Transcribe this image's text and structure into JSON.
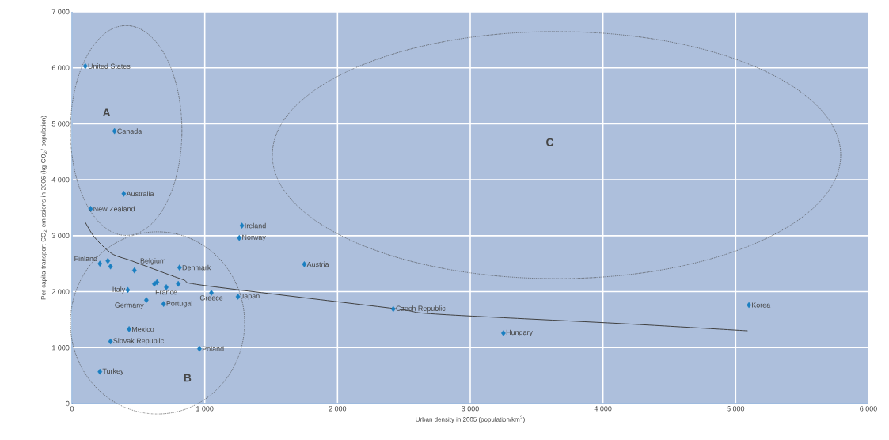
{
  "chart_data": {
    "type": "scatter",
    "xlabel": "Urban density in 2005 (population/km$^{2}$)",
    "ylabel": "Per capita transport CO$_{2}$ emissions in 2006 (kg CO$_{2}$/ population)",
    "xlim": [
      0,
      6000
    ],
    "ylim": [
      0,
      7000
    ],
    "xticks": [
      0,
      {
        "value": 1000,
        "label": "1 000"
      },
      {
        "value": 2000,
        "label": "2 000"
      },
      {
        "value": 3000,
        "label": "3 000"
      },
      {
        "value": 4000,
        "label": "4 000"
      },
      {
        "value": 5000,
        "label": "5 000"
      },
      {
        "value": 6000,
        "label": "6 000"
      }
    ],
    "yticks": [
      0,
      {
        "value": 1000,
        "label": "1 000"
      },
      {
        "value": 2000,
        "label": "2 000"
      },
      {
        "value": 3000,
        "label": "3 000"
      },
      {
        "value": 4000,
        "label": "4 000"
      },
      {
        "value": 5000,
        "label": "5 000"
      },
      {
        "value": 6000,
        "label": "6 000"
      },
      {
        "value": 7000,
        "label": "7 000"
      }
    ],
    "grid": true,
    "marker": "diamond",
    "series": [
      {
        "color": "#1a7fc1",
        "x": [
          100,
          320,
          390,
          140,
          1280,
          1260,
          1750,
          210,
          270,
          290,
          470,
          810,
          620,
          640,
          710,
          800,
          1050,
          1250,
          420,
          560,
          690,
          430,
          290,
          960,
          210,
          2420,
          3250,
          5100
        ],
        "values": [
          6030,
          4870,
          3750,
          3480,
          3180,
          2960,
          2490,
          2500,
          2550,
          2450,
          2380,
          2430,
          2140,
          2170,
          2080,
          2140,
          1980,
          1910,
          2030,
          1850,
          1780,
          1330,
          1110,
          980,
          570,
          1690,
          1260,
          1760
        ]
      },
      {
        "type": "line",
        "color": "#404040",
        "marker": "none",
        "x": [
          100,
          170,
          300,
          450,
          830,
          1000,
          2420,
          2740,
          4140,
          5090
        ],
        "values": [
          3240,
          2970,
          2680,
          2550,
          2220,
          2110,
          1700,
          1600,
          1430,
          1300
        ]
      }
    ],
    "annotations": [
      "A",
      "B",
      "C",
      {
        "text": "United States",
        "x": 100,
        "y": 6030
      },
      {
        "text": "Canada",
        "x": 320,
        "y": 4870
      },
      {
        "text": "Australia",
        "x": 390,
        "y": 3750
      },
      {
        "text": "New Zealand",
        "x": 140,
        "y": 3480
      },
      {
        "text": "Ireland",
        "x": 1280,
        "y": 3180
      },
      {
        "text": "Norway",
        "x": 1260,
        "y": 2960
      },
      {
        "text": "Austria",
        "x": 1750,
        "y": 2490
      },
      {
        "text": "Finland",
        "x": 210,
        "y": 2500
      },
      {
        "text": "Belgium",
        "x": 470,
        "y": 2380
      },
      {
        "text": "Denmark",
        "x": 810,
        "y": 2430
      },
      {
        "text": "France",
        "x": 710,
        "y": 2080
      },
      {
        "text": "Greece",
        "x": 1050,
        "y": 1980
      },
      {
        "text": "Japan",
        "x": 1250,
        "y": 1910
      },
      {
        "text": "Italy",
        "x": 420,
        "y": 2030
      },
      {
        "text": "Germany",
        "x": 560,
        "y": 1850
      },
      {
        "text": "Portugal",
        "x": 690,
        "y": 1780
      },
      {
        "text": "Mexico",
        "x": 430,
        "y": 1330
      },
      {
        "text": "Slovak Republic",
        "x": 290,
        "y": 1110
      },
      {
        "text": "Poland",
        "x": 960,
        "y": 980
      },
      {
        "text": "Turkey",
        "x": 210,
        "y": 570
      },
      {
        "text": "Czech Republic",
        "x": 2420,
        "y": 1690
      },
      {
        "text": "Hungary",
        "x": 3250,
        "y": 1260
      },
      {
        "text": "Korea",
        "x": 5100,
        "y": 1760
      }
    ]
  }
}
